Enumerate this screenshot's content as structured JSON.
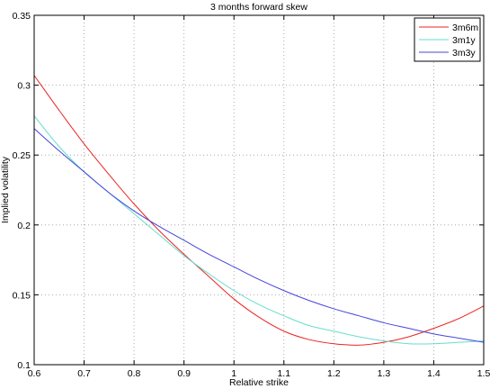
{
  "chart_data": {
    "type": "line",
    "title": "3 months forward skew",
    "xlabel": "Relative strike",
    "ylabel": "Implied volatility",
    "xlim": [
      0.6,
      1.5
    ],
    "ylim": [
      0.1,
      0.35
    ],
    "grid": true,
    "legend_position": "top-right",
    "x_ticks": [
      0.6,
      0.7,
      0.8,
      0.9,
      1.0,
      1.1,
      1.2,
      1.3,
      1.4,
      1.5
    ],
    "x_tick_labels": [
      "0.6",
      "0.7",
      "0.8",
      "0.9",
      "1",
      "1.1",
      "1.2",
      "1.3",
      "1.4",
      "1.5"
    ],
    "y_ticks": [
      0.1,
      0.15,
      0.2,
      0.25,
      0.3,
      0.35
    ],
    "y_tick_labels": [
      "0.1",
      "0.15",
      "0.2",
      "0.25",
      "0.3",
      "0.35"
    ],
    "x": [
      0.6,
      0.65,
      0.7,
      0.75,
      0.8,
      0.85,
      0.9,
      0.95,
      1.0,
      1.05,
      1.1,
      1.15,
      1.2,
      1.25,
      1.3,
      1.35,
      1.4,
      1.45,
      1.5
    ],
    "series": [
      {
        "name": "3m6m",
        "color": "#ee2222",
        "values": [
          0.307,
          0.282,
          0.258,
          0.236,
          0.215,
          0.196,
          0.179,
          0.163,
          0.147,
          0.134,
          0.124,
          0.118,
          0.115,
          0.114,
          0.116,
          0.12,
          0.126,
          0.133,
          0.142
        ]
      },
      {
        "name": "3m1y",
        "color": "#66ddcc",
        "values": [
          0.278,
          0.256,
          0.238,
          0.223,
          0.208,
          0.193,
          0.178,
          0.165,
          0.153,
          0.143,
          0.135,
          0.128,
          0.124,
          0.12,
          0.117,
          0.115,
          0.115,
          0.116,
          0.117
        ]
      },
      {
        "name": "3m3y",
        "color": "#4444dd",
        "values": [
          0.269,
          0.253,
          0.238,
          0.223,
          0.21,
          0.199,
          0.189,
          0.179,
          0.17,
          0.161,
          0.153,
          0.146,
          0.14,
          0.135,
          0.13,
          0.126,
          0.122,
          0.119,
          0.116
        ]
      }
    ]
  }
}
